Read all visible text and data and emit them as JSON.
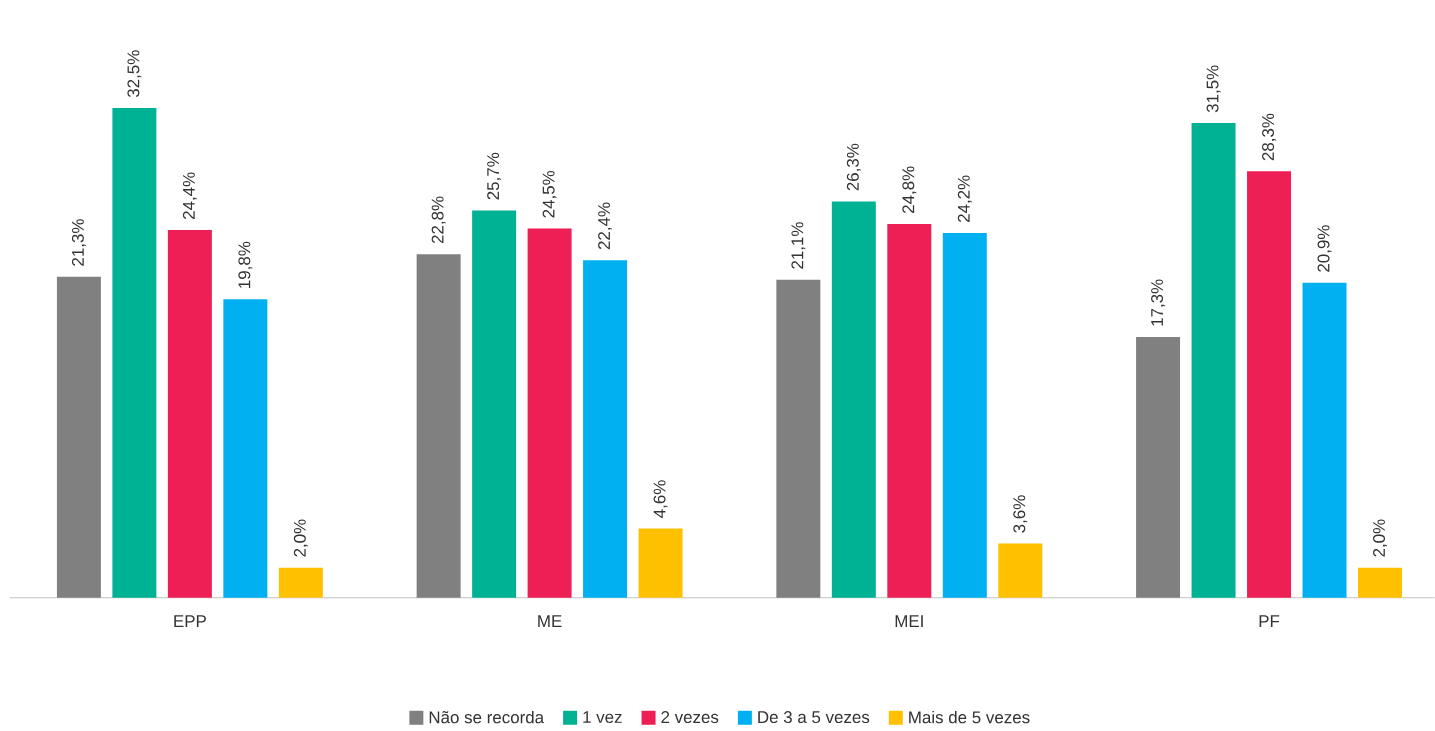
{
  "chart_data": {
    "type": "bar",
    "categories": [
      "EPP",
      "ME",
      "MEI",
      "PF"
    ],
    "tick_labels": "x",
    "legend": "bottom",
    "grid": false,
    "series": [
      {
        "name": "Não se recorda",
        "color": "#808080",
        "values": [
          21.3,
          22.8,
          21.1,
          17.3
        ],
        "value_labels": [
          "21,3%",
          "22,8%",
          "21,1%",
          "17,3%"
        ]
      },
      {
        "name": "1 vez",
        "color": "#00b294",
        "values": [
          32.5,
          25.7,
          26.3,
          31.5
        ],
        "value_labels": [
          "32,5%",
          "25,7%",
          "26,3%",
          "31,5%"
        ]
      },
      {
        "name": "2 vezes",
        "color": "#ed1f55",
        "values": [
          24.4,
          24.5,
          24.8,
          28.3
        ],
        "value_labels": [
          "24,4%",
          "24,5%",
          "24,8%",
          "28,3%"
        ]
      },
      {
        "name": "De 3 a 5 vezes",
        "color": "#00b0f0",
        "values": [
          19.8,
          22.4,
          24.2,
          20.9
        ],
        "value_labels": [
          "19,8%",
          "22,4%",
          "24,2%",
          "20,9%"
        ]
      },
      {
        "name": "Mais de 5 vezes",
        "color": "#ffc000",
        "values": [
          2.0,
          4.6,
          3.6,
          2.0
        ],
        "value_labels": [
          "2,0%",
          "4,6%",
          "3,6%",
          "2,0%"
        ]
      }
    ]
  }
}
